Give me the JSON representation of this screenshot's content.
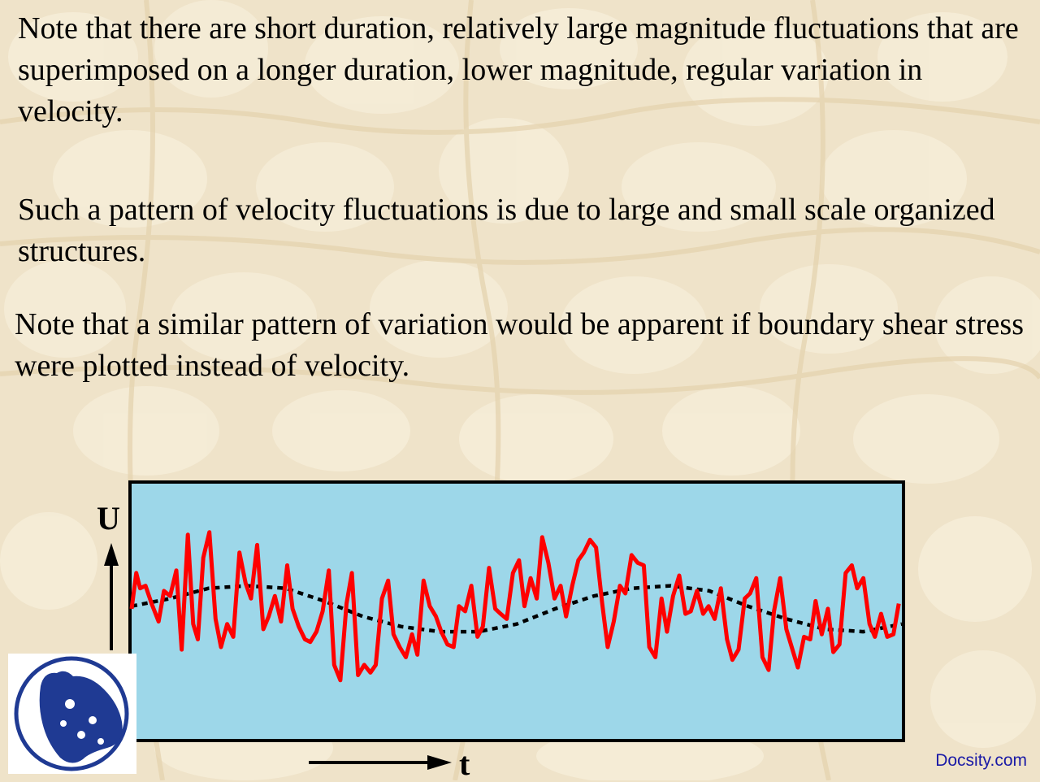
{
  "paragraphs": {
    "p1": "Note that there are short duration, relatively large magnitude fluctuations that are superimposed on a longer duration, lower magnitude, regular variation in velocity.",
    "p2": "Such a pattern of velocity fluctuations is due to large and small scale organized structures.",
    "p3": "Note that a similar pattern of variation would be apparent if boundary shear stress were plotted instead of velocity."
  },
  "colors": {
    "background": "#efe3c9",
    "plot_area": "#9dd7e9",
    "fluctuation_line": "#ff0000",
    "mean_line": "#000000",
    "watermark": "#1a1aa6",
    "logo_blue": "#1f3a93"
  },
  "chart_data": {
    "type": "line",
    "title": "",
    "xlabel": "t",
    "ylabel": "U",
    "ylim": [
      0,
      10
    ],
    "xlim": [
      0,
      100
    ],
    "grid": false,
    "legend": "none",
    "series": [
      {
        "style": "solid",
        "color": "#ff0000",
        "x": [
          0,
          0.6,
          1.1,
          1.8,
          2.6,
          3.5,
          4.2,
          5.0,
          5.8,
          6.5,
          7.3,
          8.0,
          8.6,
          9.3,
          10.1,
          10.9,
          11.6,
          12.4,
          13.2,
          14.0,
          14.8,
          15.5,
          16.3,
          17.1,
          17.8,
          18.6,
          19.4,
          20.2,
          20.9,
          21.7,
          22.5,
          23.2,
          24.0,
          24.8,
          25.6,
          26.3,
          27.1,
          27.9,
          28.6,
          29.4,
          30.2,
          31.0,
          31.7,
          32.5,
          33.3,
          34.0,
          34.8,
          35.6,
          36.4,
          37.1,
          37.9,
          38.7,
          39.5,
          40.2,
          41.0,
          41.8,
          42.5,
          43.3,
          44.1,
          44.9,
          45.6,
          46.4,
          47.2,
          47.9,
          48.7,
          49.5,
          50.3,
          51.0,
          51.8,
          52.6,
          53.3,
          54.1,
          54.9,
          55.7,
          56.4,
          57.2,
          58.0,
          58.7,
          59.5,
          60.3,
          61.1,
          61.8,
          62.6,
          63.4,
          64.1,
          64.9,
          65.7,
          66.5,
          67.2,
          68.0,
          68.8,
          69.5,
          70.3,
          71.1,
          71.9,
          72.6,
          73.4,
          74.2,
          74.9,
          75.7,
          76.5,
          77.3,
          78.0,
          78.8,
          79.6,
          80.3,
          81.1,
          81.9,
          82.7,
          83.4,
          84.2,
          85.0,
          85.7,
          86.5,
          87.3,
          88.1,
          88.8,
          89.6,
          90.4,
          91.1,
          91.9,
          92.7,
          93.5,
          94.2,
          95.0,
          95.8,
          96.5,
          97.3,
          98.1,
          98.9,
          99.6
        ],
        "y": [
          5.1,
          6.5,
          5.9,
          6.0,
          5.3,
          4.6,
          5.8,
          5.6,
          6.6,
          3.5,
          8.0,
          4.5,
          3.9,
          7.1,
          8.1,
          4.7,
          3.6,
          4.5,
          4.0,
          7.3,
          6.1,
          5.5,
          7.6,
          4.3,
          4.8,
          5.6,
          4.6,
          6.8,
          5.1,
          4.4,
          3.9,
          3.8,
          4.2,
          5.0,
          6.6,
          2.9,
          2.3,
          5.3,
          6.5,
          2.5,
          2.9,
          2.6,
          2.9,
          5.5,
          6.2,
          4.1,
          3.6,
          3.2,
          4.1,
          3.3,
          6.2,
          5.2,
          4.8,
          4.2,
          3.7,
          3.6,
          5.2,
          5.0,
          6.0,
          4.0,
          4.4,
          6.7,
          5.1,
          4.9,
          4.7,
          6.5,
          7.0,
          5.2,
          6.3,
          5.5,
          7.9,
          6.9,
          5.5,
          6.0,
          4.8,
          6.0,
          7.0,
          7.3,
          7.8,
          7.5,
          5.3,
          3.6,
          4.6,
          6.0,
          5.7,
          7.2,
          6.9,
          6.8,
          3.6,
          3.2,
          5.5,
          4.2,
          5.6,
          6.4,
          4.9,
          5.0,
          5.8,
          4.9,
          5.2,
          4.7,
          5.9,
          3.9,
          3.1,
          3.5,
          5.5,
          5.7,
          6.3,
          3.2,
          2.7,
          5.0,
          6.3,
          4.3,
          3.6,
          2.8,
          4.0,
          3.9,
          5.4,
          4.1,
          5.1,
          3.4,
          3.7,
          6.5,
          6.8,
          5.9,
          6.3,
          4.5,
          4.0,
          4.9,
          4.0,
          4.1,
          5.3
        ],
        "label": ""
      },
      {
        "style": "dotted",
        "color": "#000000",
        "x": [
          0,
          5,
          10,
          15,
          20,
          25,
          30,
          35,
          40,
          45,
          50,
          55,
          60,
          65,
          70,
          75,
          80,
          85,
          90,
          95,
          100
        ],
        "y": [
          5.2,
          5.5,
          5.9,
          6.0,
          5.9,
          5.4,
          4.8,
          4.4,
          4.2,
          4.2,
          4.5,
          5.1,
          5.6,
          5.9,
          6.0,
          5.8,
          5.2,
          4.7,
          4.3,
          4.2,
          4.5
        ],
        "label": ""
      }
    ]
  },
  "logo": {
    "name": "Docsity logo"
  },
  "watermark": {
    "text": "Docsity.com"
  }
}
